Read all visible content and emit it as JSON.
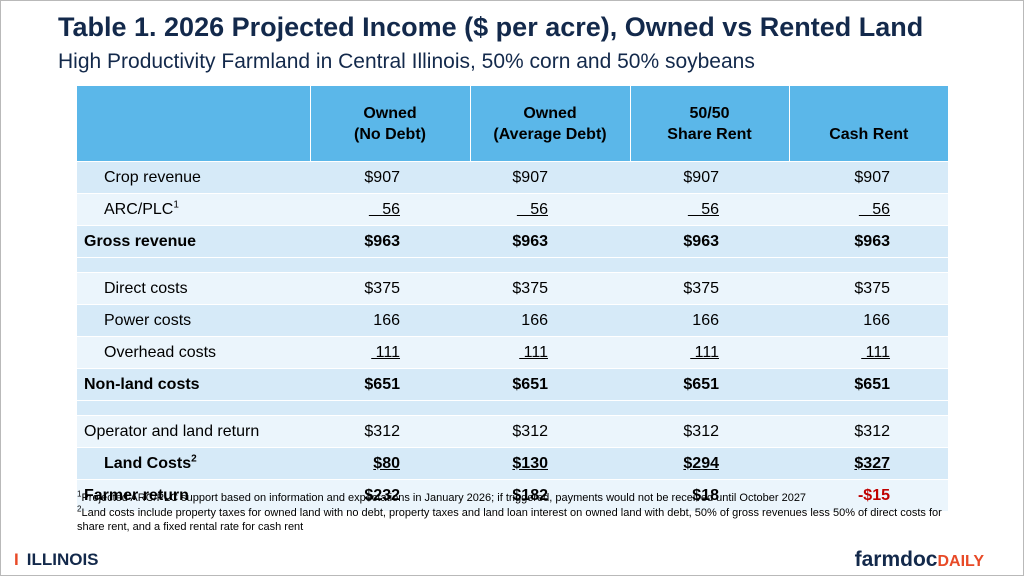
{
  "title": "Table 1. 2026 Projected Income ($ per acre), Owned vs Rented Land",
  "subtitle": "High Productivity Farmland in Central Illinois, 50% corn and 50% soybeans",
  "headers": [
    {
      "l1": "",
      "l2": ""
    },
    {
      "l1": "Owned",
      "l2": "(No Debt)"
    },
    {
      "l1": "Owned",
      "l2": "(Average Debt)"
    },
    {
      "l1": "50/50",
      "l2": "Share Rent"
    },
    {
      "l1": "",
      "l2": "Cash Rent"
    }
  ],
  "rows": {
    "crop_revenue": {
      "label": "Crop revenue",
      "values": [
        "$907",
        "$907",
        "$907",
        "$907"
      ]
    },
    "arc_plc": {
      "label": "ARC/PLC",
      "sup": "1",
      "values": [
        "   56",
        "   56",
        "   56",
        "   56"
      ]
    },
    "gross_revenue": {
      "label": "Gross revenue",
      "values": [
        "$963",
        "$963",
        "$963",
        "$963"
      ]
    },
    "direct_costs": {
      "label": "Direct costs",
      "values": [
        "$375",
        "$375",
        "$375",
        "$375"
      ]
    },
    "power_costs": {
      "label": "Power costs",
      "values": [
        "166",
        "166",
        "166",
        "166"
      ]
    },
    "overhead_costs": {
      "label": "Overhead costs",
      "values": [
        " 111",
        " 111",
        " 111",
        " 111"
      ]
    },
    "non_land_costs": {
      "label": "Non-land costs",
      "values": [
        "$651",
        "$651",
        "$651",
        "$651"
      ]
    },
    "operator_land_return": {
      "label": "Operator and land return",
      "values": [
        "$312",
        "$312",
        "$312",
        "$312"
      ]
    },
    "land_costs": {
      "label": "Land Costs",
      "sup": "2",
      "values": [
        "$80",
        "$130",
        "$294",
        "$327"
      ]
    },
    "farmer_return": {
      "label": "Farmer return",
      "values": [
        "$232",
        "$182",
        "$18",
        "-$15"
      ]
    }
  },
  "footnotes": {
    "fn1_mark": "1",
    "fn1": "Projected ARC/PLC support based on information and expectations in January  2026; if triggered, payments would not be received until October 2027",
    "fn2_mark": "2",
    "fn2": "Land costs include property taxes for owned land with no debt, property taxes and land loan interest on owned land with debt, 50% of gross revenues less 50% of direct costs for share rent, and a fixed rental rate for cash rent"
  },
  "logos": {
    "illinois_mark": "I",
    "illinois_text": "ILLINOIS",
    "farmdoc_a": "farmdoc",
    "farmdoc_b": "DAILY"
  },
  "colors": {
    "title": "#13294b",
    "header_bg": "#5bb7e9",
    "row_alt": "#d6eaf8",
    "row_plain": "#ebf5fc",
    "negative": "#c00000",
    "accent_orange": "#e84a27"
  }
}
